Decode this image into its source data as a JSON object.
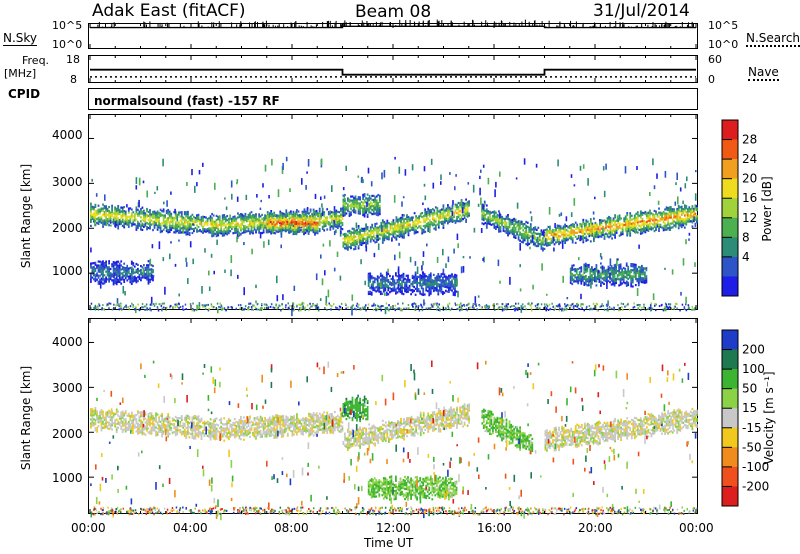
{
  "header": {
    "station": "Adak East (fitACF)",
    "beam": "Beam 08",
    "date": "31/Jul/2014"
  },
  "nsky_panel": {
    "left_label": "N.Sky",
    "left_ticks": [
      "10^5",
      "10^0"
    ],
    "right_label": "N.Search",
    "right_ticks": [
      "10^5",
      "10^0"
    ]
  },
  "freq_panel": {
    "left_label_line1": "Freq.",
    "left_label_line2": "[MHz]",
    "left_ticks": [
      "18",
      "8"
    ],
    "right_label": "Nave",
    "right_ticks": [
      "60",
      "0"
    ],
    "cpid_label": "CPID",
    "program_text": "normalsound (fast)  -157 RF"
  },
  "power_panel": {
    "ylabel": "Slant Range [km]",
    "yticks": [
      "4000",
      "3000",
      "2000",
      "1000"
    ],
    "colorbar_label": "Power [dB]",
    "colorbar_ticks": [
      "28",
      "24",
      "20",
      "16",
      "12",
      "8",
      "4"
    ],
    "colors": [
      "#1e1ee6",
      "#2d55c8",
      "#2d8c78",
      "#4caf50",
      "#a0d23c",
      "#f0dc1e",
      "#f0a01e",
      "#f05a14",
      "#dc1e1e"
    ]
  },
  "velocity_panel": {
    "ylabel": "Slant Range [km]",
    "yticks": [
      "4000",
      "3000",
      "2000",
      "1000"
    ],
    "colorbar_label": "Velocity [m s⁻¹]",
    "colorbar_ticks": [
      "200",
      "100",
      "50",
      "15",
      "-15",
      "-50",
      "-100",
      "-200"
    ],
    "colors": [
      "#1e3cc8",
      "#1e7850",
      "#3cb432",
      "#8cd246",
      "#c8c8c8",
      "#f0c81e",
      "#f08c1e",
      "#f0501e",
      "#dc1e1e"
    ]
  },
  "xaxis": {
    "ticks": [
      "00:00",
      "04:00",
      "08:00",
      "12:00",
      "16:00",
      "20:00",
      "00:00"
    ],
    "label": "Time UT"
  },
  "chart_data": [
    {
      "type": "line",
      "title": "N.Sky / N.Search",
      "x": [
        0,
        10,
        10,
        18,
        18,
        24
      ],
      "series": [
        {
          "name": "N.Sky",
          "values": [
            4.4,
            4.4,
            4.7,
            4.7,
            4.4,
            4.4
          ]
        }
      ],
      "xlim": [
        0,
        24
      ],
      "ylim": [
        0,
        5
      ]
    },
    {
      "type": "line",
      "title": "Freq. [MHz] / Nave",
      "x": [
        0,
        10,
        10,
        18,
        18,
        24
      ],
      "series": [
        {
          "name": "Freq.",
          "values": [
            12.3,
            12.3,
            10.2,
            10.2,
            12.3,
            12.3
          ]
        },
        {
          "name": "Nave",
          "values": [
            17,
            17,
            17,
            17,
            17,
            17
          ]
        }
      ],
      "xlim": [
        0,
        24
      ],
      "ylim": [
        8,
        18
      ]
    },
    {
      "type": "heatmap",
      "title": "Power [dB]",
      "xlabel": "Time UT",
      "ylabel": "Slant Range [km]",
      "xlim": [
        0,
        24
      ],
      "ylim": [
        180,
        4500
      ],
      "bands": [
        {
          "x": [
            0,
            10
          ],
          "y_range_center": [
            2300,
            2050,
            2200
          ],
          "peak_power": 20
        },
        {
          "x": [
            7,
            9
          ],
          "y_range_center": [
            2100
          ],
          "peak_power": 28
        },
        {
          "x": [
            10,
            11.5
          ],
          "y_range_center": [
            2500
          ],
          "peak_power": 16
        },
        {
          "x": [
            10,
            15
          ],
          "y_range_center": [
            1700,
            2400
          ],
          "peak_power": 20
        },
        {
          "x": [
            15.5,
            18
          ],
          "y_range_center": [
            2300,
            1700
          ],
          "peak_power": 16
        },
        {
          "x": [
            18,
            24
          ],
          "y_range_center": [
            1800,
            2300
          ],
          "peak_power": 24
        },
        {
          "x": [
            0,
            2.5
          ],
          "y_range_center": [
            1000
          ],
          "peak_power": 8
        },
        {
          "x": [
            11,
            14.5
          ],
          "y_range_center": [
            750
          ],
          "peak_power": 8
        },
        {
          "x": [
            19,
            22
          ],
          "y_range_center": [
            950
          ],
          "peak_power": 12
        }
      ]
    },
    {
      "type": "heatmap",
      "title": "Velocity [m s⁻¹]",
      "xlabel": "Time UT",
      "ylabel": "Slant Range [km]",
      "xlim": [
        0,
        24
      ],
      "ylim": [
        180,
        4500
      ],
      "bands": [
        {
          "x": [
            0,
            10
          ],
          "y_range_center": [
            2300,
            2050,
            2200
          ],
          "velocity": 0
        },
        {
          "x": [
            10,
            11
          ],
          "y_range_center": [
            2500
          ],
          "velocity": 60
        },
        {
          "x": [
            10,
            15
          ],
          "y_range_center": [
            1800,
            2400
          ],
          "velocity": 0
        },
        {
          "x": [
            15.5,
            17.5
          ],
          "y_range_center": [
            2300,
            1700
          ],
          "velocity": 30
        },
        {
          "x": [
            18,
            24
          ],
          "y_range_center": [
            1800,
            2300
          ],
          "velocity": 0
        },
        {
          "x": [
            11,
            14.5
          ],
          "y_range_center": [
            750
          ],
          "velocity": 30
        }
      ]
    }
  ]
}
